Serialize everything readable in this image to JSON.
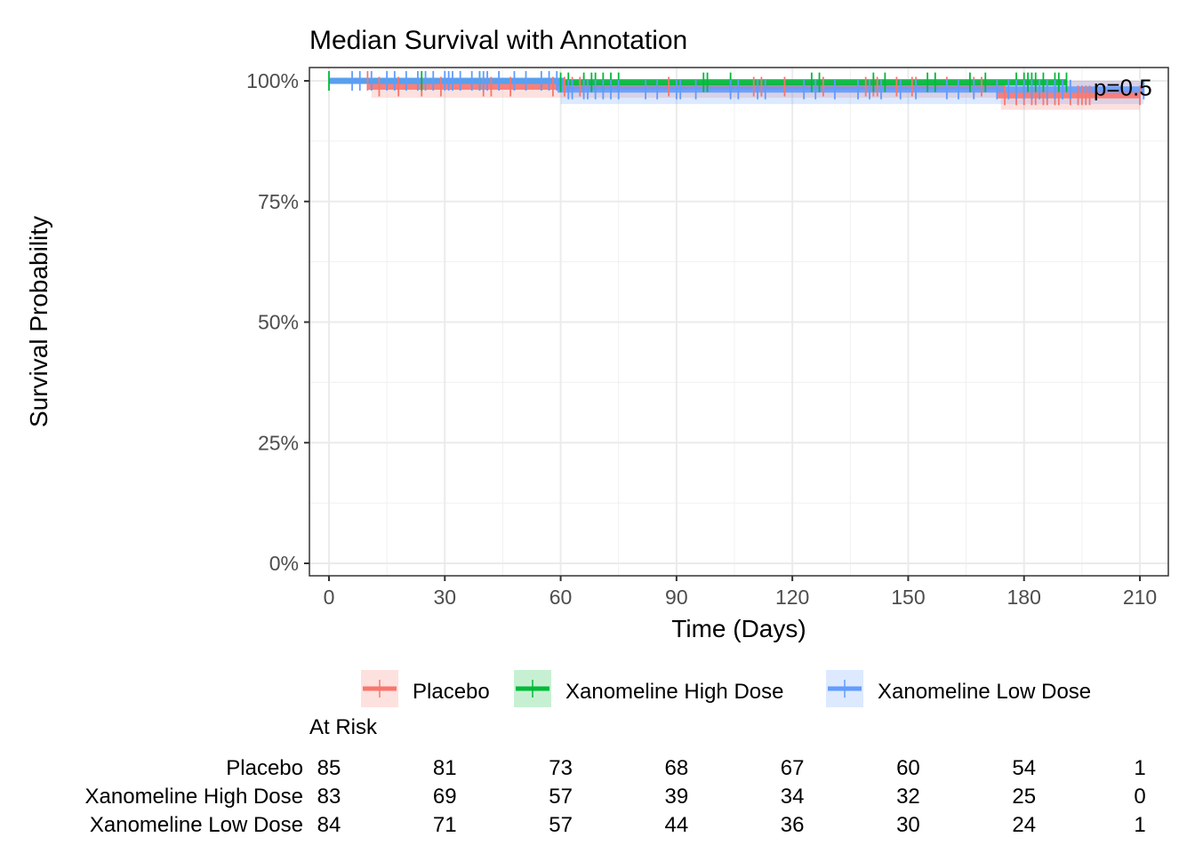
{
  "chart_data": {
    "type": "line",
    "subtype": "kaplan-meier step",
    "title": "Median Survival with Annotation",
    "xlabel": "Time (Days)",
    "ylabel": "Survival Probability",
    "xlim": [
      -5,
      217
    ],
    "ylim": [
      -0.025,
      1.026
    ],
    "x_ticks": [
      0,
      30,
      60,
      90,
      120,
      150,
      180,
      210
    ],
    "x_tick_labels": [
      "0",
      "30",
      "60",
      "90",
      "120",
      "150",
      "180",
      "210"
    ],
    "y_ticks": [
      0,
      0.25,
      0.5,
      0.75,
      1.0
    ],
    "y_tick_labels": [
      "0%",
      "25%",
      "50%",
      "75%",
      "100%"
    ],
    "grid": true,
    "legend_position": "bottom",
    "annotation": {
      "text": "p=0.5",
      "x": 198,
      "y": 0.99
    },
    "series": [
      {
        "name": "Placebo",
        "color": "#F8766D",
        "steps": [
          [
            0,
            1.0
          ],
          [
            11,
            0.988
          ],
          [
            174,
            0.97
          ],
          [
            210,
            0.97
          ]
        ],
        "ci_lower": [
          [
            11,
            0.965
          ],
          [
            174,
            0.94
          ],
          [
            210,
            0.94
          ]
        ],
        "ci_upper": [
          [
            11,
            1.0
          ],
          [
            174,
            1.0
          ],
          [
            210,
            1.0
          ]
        ],
        "censor_times": [
          10,
          13,
          18,
          24,
          29,
          40,
          42,
          47,
          58,
          61,
          63,
          65,
          66,
          88,
          104,
          110,
          112,
          118,
          128,
          139,
          141,
          142,
          147,
          151,
          152,
          160,
          167,
          169,
          175,
          178,
          180,
          182,
          183,
          185,
          186,
          188,
          189,
          192,
          194,
          195,
          196,
          197,
          210
        ]
      },
      {
        "name": "Xanomeline High Dose",
        "color": "#00BA38",
        "steps": [
          [
            0,
            1.0
          ],
          [
            60,
            0.997
          ],
          [
            191,
            0.997
          ]
        ],
        "ci_lower": [
          [
            0,
            1.0
          ],
          [
            60,
            0.99
          ],
          [
            191,
            0.99
          ]
        ],
        "ci_upper": [
          [
            0,
            1.0
          ],
          [
            60,
            1.0
          ],
          [
            191,
            1.0
          ]
        ],
        "censor_times": [
          0,
          24,
          39,
          60,
          62,
          66,
          68,
          69,
          71,
          73,
          75,
          97,
          98,
          104,
          125,
          127,
          141,
          144,
          155,
          157,
          166,
          170,
          178,
          180,
          181,
          182,
          183,
          185,
          188,
          189,
          191
        ]
      },
      {
        "name": "Xanomeline Low Dose",
        "color": "#619CFF",
        "steps": [
          [
            0,
            1.0
          ],
          [
            60,
            0.982
          ],
          [
            211,
            0.982
          ]
        ],
        "ci_lower": [
          [
            0,
            1.0
          ],
          [
            60,
            0.952
          ],
          [
            211,
            0.952
          ]
        ],
        "ci_upper": [
          [
            0,
            1.0
          ],
          [
            60,
            1.0
          ],
          [
            211,
            1.0
          ]
        ],
        "censor_times": [
          6,
          8,
          11,
          15,
          17,
          20,
          23,
          25,
          27,
          30,
          31,
          32,
          34,
          37,
          39,
          40,
          41,
          44,
          48,
          51,
          55,
          57,
          59,
          62,
          63,
          66,
          67,
          69,
          71,
          73,
          75,
          82,
          85,
          90,
          91,
          95,
          104,
          106,
          111,
          113,
          123,
          126,
          131,
          137,
          140,
          143,
          148,
          152,
          160,
          163,
          167,
          173,
          176,
          178,
          180,
          182,
          184,
          186,
          188,
          190,
          192,
          211
        ]
      }
    ],
    "risk_table": {
      "title": "At Risk",
      "times": [
        0,
        30,
        60,
        90,
        120,
        150,
        180,
        210
      ],
      "rows": [
        {
          "label": "Placebo",
          "values": [
            "85",
            "81",
            "73",
            "68",
            "67",
            "60",
            "54",
            "1"
          ]
        },
        {
          "label": "Xanomeline High Dose",
          "values": [
            "83",
            "69",
            "57",
            "39",
            "34",
            "32",
            "25",
            "0"
          ]
        },
        {
          "label": "Xanomeline Low Dose",
          "values": [
            "84",
            "71",
            "57",
            "44",
            "36",
            "30",
            "24",
            "1"
          ]
        }
      ]
    }
  }
}
